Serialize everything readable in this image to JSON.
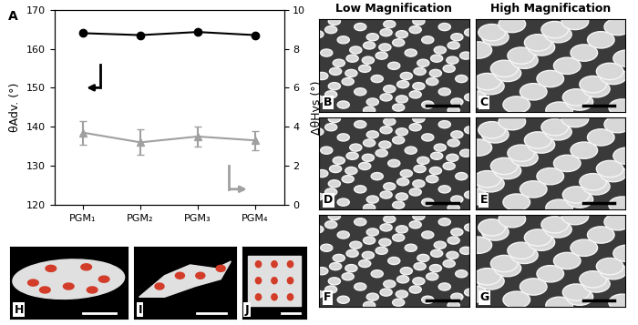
{
  "chart_data": {
    "type": "line",
    "title": "A",
    "categories": [
      "PGM₁",
      "PGM₂",
      "PGM₃",
      "PGM₄"
    ],
    "ylabel": "θAdv. (°)",
    "y2label": "ΔθHys (°)",
    "ylim": [
      120,
      170
    ],
    "yticks": [
      120,
      130,
      140,
      150,
      160,
      170
    ],
    "y2lim": [
      0,
      10
    ],
    "y2ticks": [
      0,
      2,
      4,
      6,
      8,
      10
    ],
    "series": [
      {
        "name": "θAdv.",
        "color": "#000000",
        "marker": "circle",
        "line_style": "solid",
        "values": [
          164.0,
          163.5,
          164.3,
          163.5
        ]
      },
      {
        "name": "ΔθHys",
        "color": "#a0a0a0",
        "marker": "triangle",
        "line_style": "solid",
        "axis": "y2",
        "values": [
          3.7,
          3.2,
          3.5,
          3.3
        ],
        "errors": [
          0.6,
          0.65,
          0.5,
          0.5
        ]
      }
    ]
  },
  "figure": {
    "column_titles": [
      "Low Magnification",
      "High Magnification"
    ],
    "image_panels": [
      "B",
      "C",
      "D",
      "E",
      "F",
      "G"
    ],
    "photo_panels": [
      "H",
      "I",
      "J"
    ]
  }
}
